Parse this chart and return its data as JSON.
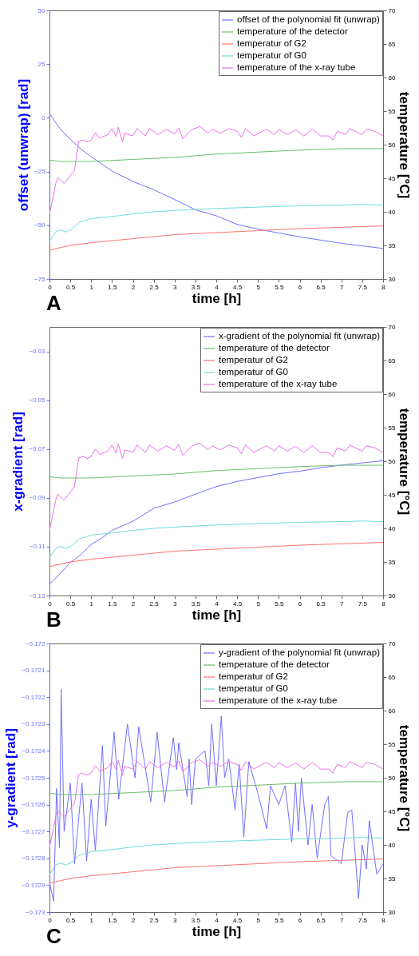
{
  "chart_data": [
    {
      "type": "line",
      "xlabel": "time [h]",
      "ylabel": "offset (unwrap) [rad]",
      "y2label": "temperature [°C]",
      "annotations": [
        "A"
      ],
      "legend": "top right",
      "grid": false,
      "xlim": [
        0,
        8
      ],
      "xticks": [
        0,
        0.5,
        1,
        1.5,
        2,
        2.5,
        3,
        3.5,
        4,
        4.5,
        5,
        5.5,
        6,
        6.5,
        7,
        7.5,
        8
      ],
      "ylim": [
        -75,
        50
      ],
      "yticks": [
        -75,
        -50,
        -25,
        0,
        25,
        50
      ],
      "y2lim": [
        30,
        70
      ],
      "y2ticks": [
        30,
        35,
        40,
        45,
        50,
        55,
        60,
        65,
        70
      ],
      "series": [
        {
          "name": "offset of the polynomial fit (unwrap)",
          "color": "#7070ff",
          "x": [
            0,
            0.25,
            0.5,
            0.75,
            1,
            1.5,
            2,
            2.5,
            3,
            3.5,
            4,
            4.5,
            5,
            5.5,
            6,
            6.5,
            7,
            7.5,
            8
          ],
          "values": [
            2,
            -5,
            -10,
            -14.5,
            -18.1,
            -24.8,
            -29.6,
            -33.5,
            -38,
            -42.8,
            -45.6,
            -49.6,
            -51.8,
            -53.6,
            -55.4,
            -56.9,
            -58.4,
            -59.6,
            -60.8
          ]
        },
        {
          "name": "temperature of the detector",
          "color": "#6cbb6c",
          "axis": "y2",
          "x": [
            0,
            0.25,
            1,
            2,
            3,
            4,
            5,
            6,
            7,
            8
          ],
          "values": [
            47.7,
            47.5,
            47.5,
            47.8,
            48.1,
            48.6,
            48.9,
            49.2,
            49.4,
            49.4
          ]
        },
        {
          "name": "temperatur of G2",
          "color": "#ff7070",
          "axis": "y2",
          "x": [
            0,
            0.5,
            1,
            2,
            3,
            4,
            5,
            6,
            7,
            8
          ],
          "values": [
            34.3,
            35.0,
            35.4,
            36.0,
            36.6,
            36.9,
            37.2,
            37.5,
            37.7,
            37.9
          ]
        },
        {
          "name": "temperatur of G0",
          "color": "#70dada",
          "axis": "y2",
          "x": [
            0,
            0.15,
            0.25,
            0.4,
            0.55,
            0.7,
            1,
            1.5,
            2,
            2.5,
            3,
            4,
            5,
            6,
            7,
            7.5,
            8
          ],
          "values": [
            35.6,
            37.0,
            37.3,
            37.0,
            37.5,
            38.4,
            39.0,
            39.3,
            39.7,
            40.0,
            40.2,
            40.5,
            40.7,
            40.9,
            41.0,
            41.1,
            41.0
          ]
        },
        {
          "name": "temperature of the x-ray tube",
          "color": "#ee70ee",
          "axis": "y2",
          "x": [
            0,
            0.15,
            0.2,
            0.35,
            0.6,
            0.7,
            0.8,
            0.9,
            1,
            1.1,
            1.2,
            1.4,
            1.5,
            1.6,
            1.65,
            1.75,
            1.8,
            2,
            2.1,
            2.3,
            2.4,
            2.6,
            2.8,
            3,
            3.1,
            3.2,
            3.4,
            3.6,
            3.8,
            3.9,
            4.1,
            4.3,
            4.5,
            4.6,
            4.7,
            4.9,
            5.2,
            5.4,
            5.5,
            5.7,
            5.9,
            6.1,
            6.3,
            6.5,
            6.7,
            6.8,
            6.9,
            7.1,
            7.2,
            7.5,
            7.6,
            7.8,
            8
          ],
          "values": [
            39.6,
            44.2,
            45.1,
            44.2,
            46.2,
            50.5,
            50.7,
            50.4,
            50.7,
            51.8,
            51.0,
            51.5,
            52.4,
            51.2,
            52.6,
            50.4,
            51.7,
            51.3,
            52.4,
            51.3,
            52.4,
            51.5,
            52.3,
            51.6,
            52.5,
            50.9,
            52.2,
            52.7,
            51.7,
            52.3,
            51.7,
            52.4,
            52.0,
            51.1,
            52.4,
            51.3,
            52.3,
            51.5,
            52.3,
            51.5,
            52.2,
            51.3,
            52.3,
            51.3,
            51.3,
            50.7,
            52.0,
            51.5,
            52.4,
            51.5,
            52.3,
            52.0,
            51.3
          ]
        }
      ]
    },
    {
      "type": "line",
      "xlabel": "time [h]",
      "ylabel": "x-gradient [rad]",
      "y2label": "temperature [°C]",
      "annotations": [
        "B"
      ],
      "legend": "top right",
      "grid": false,
      "xlim": [
        0,
        8
      ],
      "xticks": [
        0,
        0.5,
        1,
        1.5,
        2,
        2.5,
        3,
        3.5,
        4,
        4.5,
        5,
        5.5,
        6,
        6.5,
        7,
        7.5,
        8
      ],
      "ylim": [
        -0.13,
        -0.02
      ],
      "yticks": [
        -0.13,
        -0.11,
        -0.09,
        -0.07,
        -0.05,
        -0.03
      ],
      "y2lim": [
        30,
        70
      ],
      "y2ticks": [
        30,
        35,
        40,
        45,
        50,
        55,
        60,
        65,
        70
      ],
      "series": [
        {
          "name": "x-gradient of the polynomial fit (unwrap)",
          "color": "#7070ff",
          "x": [
            0,
            0.25,
            0.5,
            0.75,
            1,
            1.25,
            1.5,
            2,
            2.5,
            3,
            3.5,
            4,
            4.5,
            5,
            5.5,
            6,
            6.5,
            7,
            7.5,
            8
          ],
          "values": [
            -0.1253,
            -0.1212,
            -0.1165,
            -0.1133,
            -0.1091,
            -0.1065,
            -0.1033,
            -0.0996,
            -0.0943,
            -0.0917,
            -0.0885,
            -0.0854,
            -0.0833,
            -0.0817,
            -0.0801,
            -0.0791,
            -0.0777,
            -0.0766,
            -0.0757,
            -0.0748
          ]
        },
        {
          "name": "temperature of the detector",
          "color": "#6cbb6c",
          "axis": "y2",
          "x": [
            0,
            0.25,
            1,
            2,
            3,
            4,
            5,
            6,
            7,
            8
          ],
          "values": [
            47.7,
            47.5,
            47.5,
            47.8,
            48.1,
            48.6,
            48.9,
            49.2,
            49.4,
            49.4
          ]
        },
        {
          "name": "temperatur of G2",
          "color": "#ff7070",
          "axis": "y2",
          "x": [
            0,
            0.5,
            1,
            2,
            3,
            4,
            5,
            6,
            7,
            8
          ],
          "values": [
            34.3,
            35.0,
            35.4,
            36.0,
            36.6,
            36.9,
            37.2,
            37.5,
            37.7,
            37.9
          ]
        },
        {
          "name": "temperatur of G0",
          "color": "#70dada",
          "axis": "y2",
          "x": [
            0,
            0.15,
            0.25,
            0.4,
            0.55,
            0.7,
            1,
            1.5,
            2,
            2.5,
            3,
            4,
            5,
            6,
            7,
            7.5,
            8
          ],
          "values": [
            35.6,
            37.0,
            37.3,
            37.0,
            37.5,
            38.4,
            39.0,
            39.3,
            39.7,
            40.0,
            40.2,
            40.5,
            40.7,
            40.9,
            41.0,
            41.1,
            41.0
          ]
        },
        {
          "name": "temperature of the x-ray tube",
          "color": "#ee70ee",
          "axis": "y2",
          "x": [
            0,
            0.15,
            0.2,
            0.35,
            0.6,
            0.7,
            0.8,
            0.9,
            1,
            1.1,
            1.2,
            1.4,
            1.5,
            1.6,
            1.65,
            1.75,
            1.8,
            2,
            2.1,
            2.3,
            2.4,
            2.6,
            2.8,
            3,
            3.1,
            3.2,
            3.4,
            3.6,
            3.8,
            3.9,
            4.1,
            4.3,
            4.5,
            4.6,
            4.7,
            4.9,
            5.2,
            5.4,
            5.5,
            5.7,
            5.9,
            6.1,
            6.3,
            6.5,
            6.7,
            6.8,
            6.9,
            7.1,
            7.2,
            7.5,
            7.6,
            7.8,
            8
          ],
          "values": [
            39.6,
            44.2,
            45.1,
            44.2,
            46.2,
            50.5,
            50.7,
            50.4,
            50.7,
            51.8,
            51.0,
            51.5,
            52.4,
            51.2,
            52.6,
            50.4,
            51.7,
            51.3,
            52.4,
            51.3,
            52.4,
            51.5,
            52.3,
            51.6,
            52.5,
            50.9,
            52.2,
            52.7,
            51.7,
            52.3,
            51.7,
            52.4,
            52.0,
            51.1,
            52.4,
            51.3,
            52.3,
            51.5,
            52.3,
            51.5,
            52.2,
            51.3,
            52.3,
            51.3,
            51.3,
            50.7,
            52.0,
            51.5,
            52.4,
            51.5,
            52.3,
            52.0,
            51.3
          ]
        }
      ]
    },
    {
      "type": "line",
      "xlabel": "time [h]",
      "ylabel": "y-gradient [rad]",
      "y2label": "temperature [°C]",
      "annotations": [
        "C"
      ],
      "legend": "top right",
      "grid": false,
      "xlim": [
        0,
        8
      ],
      "xticks": [
        0,
        0.5,
        1,
        1.5,
        2,
        2.5,
        3,
        3.5,
        4,
        4.5,
        5,
        5.5,
        6,
        6.5,
        7,
        7.5,
        8
      ],
      "ylim": [
        -0.173,
        -0.172
      ],
      "yticks": [
        -0.173,
        -0.1729,
        -0.1728,
        -0.1727,
        -0.1726,
        -0.1725,
        -0.1724,
        -0.1723,
        -0.1722,
        -0.1721,
        -0.172
      ],
      "y2lim": [
        30,
        70
      ],
      "y2ticks": [
        30,
        35,
        40,
        45,
        50,
        55,
        60,
        65,
        70
      ],
      "series": [
        {
          "name": "y-gradient of the polynomial fit (unwrap)",
          "color": "#7070ff",
          "x": [
            0,
            0.1,
            0.17,
            0.24,
            0.28,
            0.35,
            0.5,
            0.6,
            0.78,
            0.89,
            1.0,
            1.1,
            1.27,
            1.35,
            1.55,
            1.66,
            1.87,
            2.05,
            2.14,
            2.43,
            2.58,
            2.76,
            2.97,
            3.05,
            3.1,
            3.3,
            3.35,
            3.41,
            3.5,
            3.73,
            3.82,
            3.89,
            4.0,
            4.12,
            4.2,
            4.3,
            4.45,
            4.55,
            4.66,
            4.78,
            5.0,
            5.21,
            5.3,
            5.5,
            5.65,
            5.81,
            5.9,
            5.97,
            6.04,
            6.2,
            6.3,
            6.42,
            6.6,
            6.69,
            6.75,
            7.0,
            7.15,
            7.25,
            7.41,
            7.5,
            7.6,
            7.67,
            7.85,
            8
          ],
          "values": [
            -0.17289,
            -0.17296,
            -0.17254,
            -0.17276,
            -0.17217,
            -0.1727,
            -0.17252,
            -0.17282,
            -0.17252,
            -0.17281,
            -0.17258,
            -0.17277,
            -0.17238,
            -0.17268,
            -0.17233,
            -0.17258,
            -0.1723,
            -0.1725,
            -0.17231,
            -0.17259,
            -0.17233,
            -0.17259,
            -0.17235,
            -0.17247,
            -0.17237,
            -0.17257,
            -0.17243,
            -0.1726,
            -0.17243,
            -0.1724,
            -0.17253,
            -0.1723,
            -0.17253,
            -0.17227,
            -0.1725,
            -0.17243,
            -0.17262,
            -0.17245,
            -0.17272,
            -0.17244,
            -0.17256,
            -0.17269,
            -0.17253,
            -0.1726,
            -0.17253,
            -0.17274,
            -0.17252,
            -0.1727,
            -0.1725,
            -0.17275,
            -0.1726,
            -0.1728,
            -0.1726,
            -0.17257,
            -0.17279,
            -0.17282,
            -0.17263,
            -0.17262,
            -0.17295,
            -0.17275,
            -0.17284,
            -0.17266,
            -0.17286,
            -0.17282
          ]
        },
        {
          "name": "temperature of the detector",
          "color": "#6cbb6c",
          "axis": "y2",
          "x": [
            0,
            0.25,
            1,
            2,
            3,
            4,
            5,
            6,
            7,
            8
          ],
          "values": [
            47.7,
            47.5,
            47.5,
            47.8,
            48.1,
            48.6,
            48.9,
            49.2,
            49.4,
            49.4
          ]
        },
        {
          "name": "temperatur of G2",
          "color": "#ff7070",
          "axis": "y2",
          "x": [
            0,
            0.5,
            1,
            2,
            3,
            4,
            5,
            6,
            7,
            8
          ],
          "values": [
            34.3,
            35.0,
            35.4,
            36.0,
            36.6,
            36.9,
            37.2,
            37.5,
            37.7,
            37.9
          ]
        },
        {
          "name": "temperatur of G0",
          "color": "#70dada",
          "axis": "y2",
          "x": [
            0,
            0.15,
            0.25,
            0.4,
            0.55,
            0.7,
            1,
            1.5,
            2,
            2.5,
            3,
            4,
            5,
            6,
            7,
            7.5,
            8
          ],
          "values": [
            35.6,
            37.0,
            37.3,
            37.0,
            37.5,
            38.4,
            39.0,
            39.3,
            39.7,
            40.0,
            40.2,
            40.5,
            40.7,
            40.9,
            41.0,
            41.1,
            41.0
          ]
        },
        {
          "name": "temperature of the x-ray tube",
          "color": "#ee70ee",
          "axis": "y2",
          "x": [
            0,
            0.15,
            0.2,
            0.35,
            0.6,
            0.7,
            0.8,
            0.9,
            1,
            1.1,
            1.2,
            1.4,
            1.5,
            1.6,
            1.65,
            1.75,
            1.8,
            2,
            2.1,
            2.3,
            2.4,
            2.6,
            2.8,
            3,
            3.1,
            3.2,
            3.4,
            3.6,
            3.8,
            3.9,
            4.1,
            4.3,
            4.5,
            4.6,
            4.7,
            4.9,
            5.2,
            5.4,
            5.5,
            5.7,
            5.9,
            6.1,
            6.3,
            6.5,
            6.7,
            6.8,
            6.9,
            7.1,
            7.2,
            7.5,
            7.6,
            7.8,
            8
          ],
          "values": [
            39.6,
            44.2,
            45.1,
            44.2,
            46.2,
            50.5,
            50.7,
            50.4,
            50.7,
            51.8,
            51.0,
            51.5,
            52.4,
            51.2,
            52.6,
            50.4,
            51.7,
            51.3,
            52.4,
            51.3,
            52.4,
            51.5,
            52.3,
            51.6,
            52.5,
            50.9,
            52.2,
            52.7,
            51.7,
            52.3,
            51.7,
            52.4,
            52.0,
            51.1,
            52.4,
            51.3,
            52.3,
            51.5,
            52.3,
            51.5,
            52.2,
            51.3,
            52.3,
            51.3,
            51.3,
            50.7,
            52.0,
            51.5,
            52.4,
            51.5,
            52.3,
            52.0,
            51.3
          ]
        }
      ]
    }
  ]
}
